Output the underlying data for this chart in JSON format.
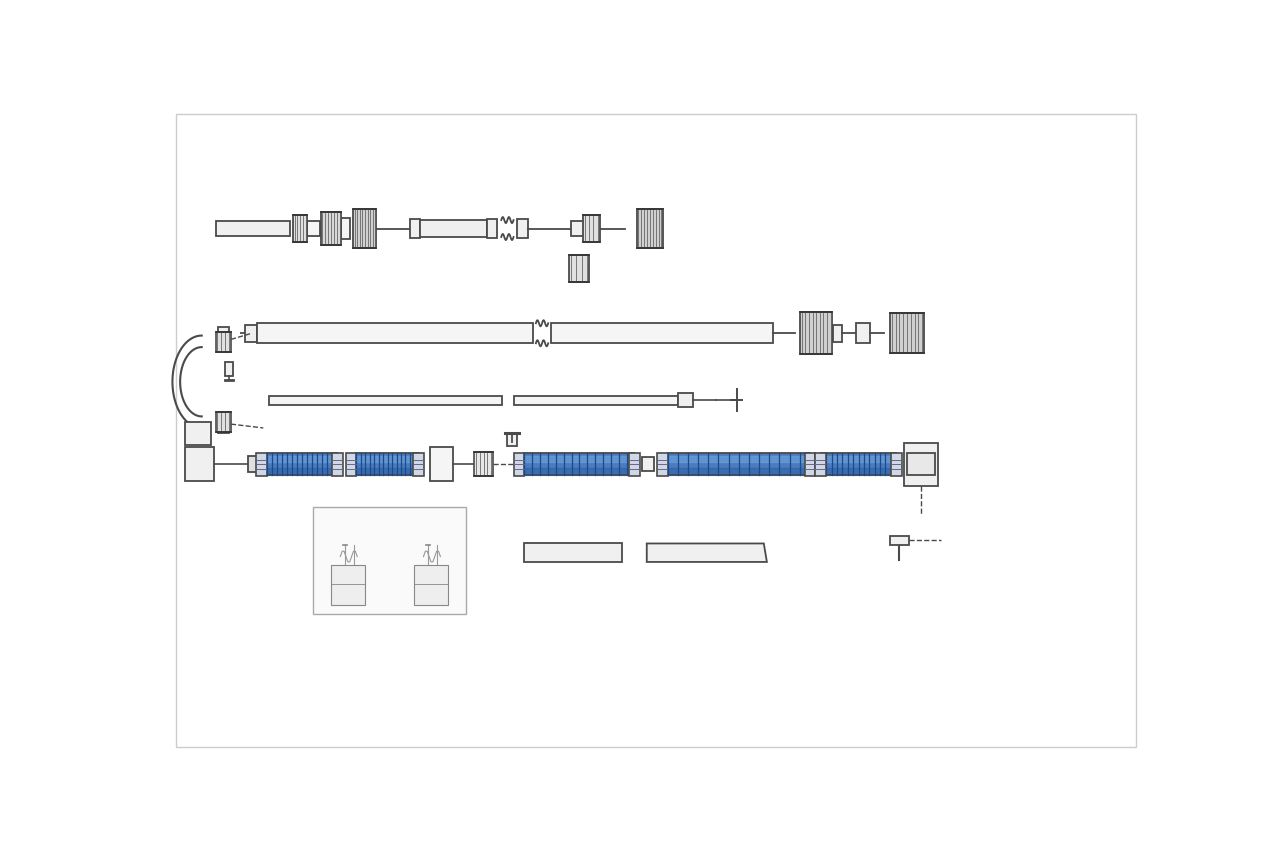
{
  "bg_color": "#ffffff",
  "line_color": "#4a4a4a",
  "blue_light": "#6a9fd8",
  "blue_mid": "#4a7bbf",
  "blue_dark": "#1a4a8a",
  "gray_fill": "#f2f2f2",
  "gray_knurl": "#e0e0e0",
  "gray_dark": "#888888"
}
